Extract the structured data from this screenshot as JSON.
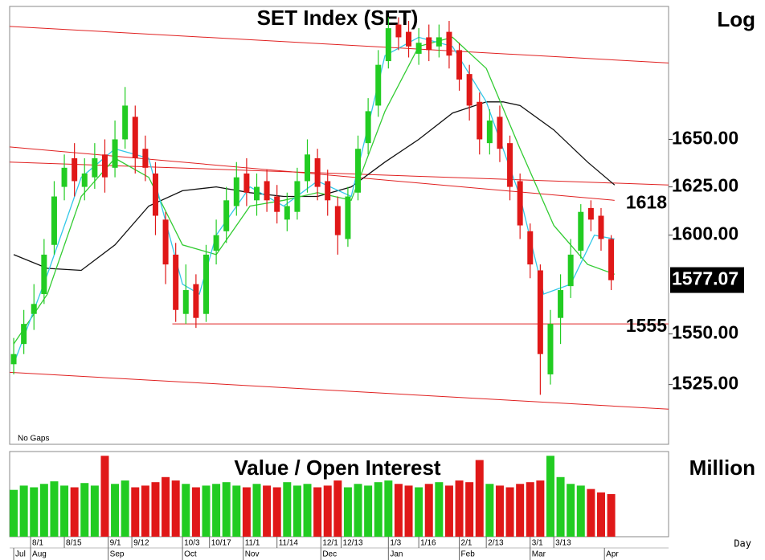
{
  "chart_data": {
    "type": "candlestick",
    "title": "SET Index (SET)",
    "scale_label": "Log",
    "log_scale": true,
    "footnote": "No Gaps",
    "period_label": "Day",
    "up_color": "#22cc22",
    "down_color": "#e01818",
    "ylim": [
      1496,
      1722
    ],
    "yticks": [
      {
        "value": 1525,
        "label": "1525.00"
      },
      {
        "value": 1550,
        "label": "1550.00"
      },
      {
        "value": 1600,
        "label": "1600.00"
      },
      {
        "value": 1625,
        "label": "1625.00"
      },
      {
        "value": 1650,
        "label": "1650.00"
      }
    ],
    "last_price": 1577.07,
    "levels": [
      1618,
      1555
    ],
    "xlim": [
      -1.2,
      194
    ],
    "xticks": [
      {
        "value": 5,
        "label": "8/1"
      },
      {
        "value": 15,
        "label": "8/15"
      },
      {
        "value": 28,
        "label": "9/1"
      },
      {
        "value": 35,
        "label": "9/12"
      },
      {
        "value": 50,
        "label": "10/3"
      },
      {
        "value": 58,
        "label": "10/17"
      },
      {
        "value": 68,
        "label": "11/1"
      },
      {
        "value": 78,
        "label": "11/14"
      },
      {
        "value": 91,
        "label": "12/1"
      },
      {
        "value": 97,
        "label": "12/13"
      },
      {
        "value": 111,
        "label": "1/3"
      },
      {
        "value": 120,
        "label": "1/16"
      },
      {
        "value": 132,
        "label": "2/1"
      },
      {
        "value": 140,
        "label": "2/13"
      },
      {
        "value": 153,
        "label": "3/1"
      },
      {
        "value": 160,
        "label": "3/13"
      }
    ],
    "month_ticks": [
      {
        "value": 0,
        "label": "Jul"
      },
      {
        "value": 5,
        "label": "Aug"
      },
      {
        "value": 28,
        "label": "Sep"
      },
      {
        "value": 50,
        "label": "Oct"
      },
      {
        "value": 68,
        "label": "Nov"
      },
      {
        "value": 91,
        "label": "Dec"
      },
      {
        "value": 111,
        "label": "Jan"
      },
      {
        "value": 132,
        "label": "Feb"
      },
      {
        "value": 153,
        "label": "Mar"
      },
      {
        "value": 175,
        "label": "Apr"
      }
    ],
    "x": [
      0,
      3,
      6,
      9,
      12,
      15,
      18,
      21,
      24,
      27,
      30,
      33,
      36,
      39,
      42,
      45,
      48,
      51,
      54,
      57,
      60,
      63,
      66,
      69,
      72,
      75,
      78,
      81,
      84,
      87,
      90,
      93,
      96,
      99,
      102,
      105,
      108,
      111,
      114,
      117,
      120,
      123,
      126,
      129,
      132,
      135,
      138,
      141,
      144,
      147,
      150,
      153,
      156,
      159,
      162,
      165,
      168,
      171,
      174,
      177
    ],
    "candles": {
      "open": [
        1535,
        1545,
        1560,
        1570,
        1595,
        1625,
        1640,
        1625,
        1630,
        1642,
        1635,
        1650,
        1662,
        1645,
        1632,
        1608,
        1590,
        1560,
        1575,
        1560,
        1592,
        1602,
        1615,
        1632,
        1618,
        1628,
        1620,
        1608,
        1612,
        1628,
        1640,
        1628,
        1615,
        1598,
        1622,
        1648,
        1668,
        1692,
        1712,
        1708,
        1696,
        1705,
        1700,
        1708,
        1698,
        1685,
        1670,
        1648,
        1662,
        1648,
        1628,
        1602,
        1582,
        1530,
        1558,
        1574,
        1592,
        1614,
        1610,
        1598
      ],
      "high": [
        1548,
        1562,
        1575,
        1598,
        1628,
        1642,
        1648,
        1640,
        1648,
        1650,
        1660,
        1678,
        1668,
        1652,
        1638,
        1612,
        1596,
        1585,
        1580,
        1595,
        1608,
        1625,
        1638,
        1640,
        1632,
        1634,
        1626,
        1622,
        1635,
        1650,
        1645,
        1634,
        1620,
        1625,
        1652,
        1672,
        1698,
        1716,
        1716,
        1714,
        1710,
        1712,
        1712,
        1714,
        1702,
        1690,
        1675,
        1666,
        1668,
        1652,
        1632,
        1606,
        1585,
        1562,
        1580,
        1598,
        1616,
        1618,
        1614,
        1600
      ],
      "low": [
        1530,
        1540,
        1552,
        1565,
        1590,
        1618,
        1620,
        1618,
        1624,
        1622,
        1630,
        1645,
        1632,
        1628,
        1600,
        1575,
        1556,
        1555,
        1553,
        1556,
        1585,
        1596,
        1610,
        1615,
        1610,
        1612,
        1606,
        1602,
        1608,
        1622,
        1618,
        1610,
        1590,
        1594,
        1618,
        1642,
        1662,
        1688,
        1698,
        1694,
        1690,
        1692,
        1694,
        1688,
        1676,
        1660,
        1642,
        1642,
        1638,
        1618,
        1598,
        1578,
        1520,
        1525,
        1545,
        1568,
        1588,
        1602,
        1592,
        1572
      ],
      "close": [
        1540,
        1555,
        1565,
        1590,
        1620,
        1635,
        1628,
        1632,
        1640,
        1630,
        1650,
        1668,
        1640,
        1635,
        1610,
        1585,
        1562,
        1572,
        1558,
        1590,
        1600,
        1618,
        1630,
        1622,
        1625,
        1618,
        1612,
        1615,
        1628,
        1642,
        1625,
        1618,
        1600,
        1620,
        1645,
        1665,
        1690,
        1710,
        1705,
        1700,
        1702,
        1698,
        1705,
        1695,
        1682,
        1668,
        1650,
        1660,
        1645,
        1625,
        1605,
        1585,
        1540,
        1555,
        1572,
        1590,
        1612,
        1608,
        1598,
        1577
      ]
    },
    "series": [
      {
        "color": "#111111",
        "x": [
          0,
          10,
          20,
          30,
          40,
          50,
          60,
          70,
          80,
          90,
          100,
          110,
          120,
          130,
          140,
          145,
          150,
          160,
          170,
          178
        ],
        "values": [
          1590,
          1583,
          1582,
          1595,
          1615,
          1623,
          1625,
          1622,
          1620,
          1620,
          1625,
          1638,
          1650,
          1664,
          1670,
          1670,
          1668,
          1655,
          1638,
          1626
        ]
      },
      {
        "color": "#33cc33",
        "x": [
          0,
          10,
          20,
          30,
          40,
          50,
          60,
          70,
          80,
          90,
          100,
          110,
          120,
          130,
          140,
          150,
          160,
          170,
          178
        ],
        "values": [
          1545,
          1570,
          1620,
          1640,
          1630,
          1595,
          1590,
          1615,
          1618,
          1622,
          1618,
          1665,
          1700,
          1705,
          1688,
          1645,
          1605,
          1585,
          1580
        ]
      },
      {
        "color": "#33c8e8",
        "x": [
          0,
          10,
          20,
          30,
          40,
          50,
          55,
          60,
          70,
          80,
          90,
          100,
          110,
          120,
          130,
          140,
          150,
          157,
          165,
          172,
          178
        ],
        "values": [
          1535,
          1580,
          1630,
          1645,
          1640,
          1575,
          1570,
          1600,
          1625,
          1615,
          1628,
          1620,
          1695,
          1705,
          1700,
          1670,
          1620,
          1570,
          1575,
          1600,
          1598
        ]
      }
    ],
    "trend_lines": [
      {
        "color": "#e02020",
        "x": [
          -1.2,
          194
        ],
        "y": [
          1711,
          1691
        ]
      },
      {
        "color": "#e02020",
        "x": [
          -1.2,
          178
        ],
        "y": [
          1646,
          1618
        ]
      },
      {
        "color": "#e02020",
        "x": [
          -1.2,
          194
        ],
        "y": [
          1638,
          1626
        ]
      },
      {
        "color": "#e02020",
        "x": [
          47,
          194
        ],
        "y": [
          1555,
          1555
        ]
      },
      {
        "color": "#e02020",
        "x": [
          -1.2,
          194
        ],
        "y": [
          1531,
          1513
        ]
      }
    ],
    "volume": {
      "title": "Value / Open Interest",
      "unit_label": "Million",
      "ylim": [
        0,
        100
      ],
      "values": [
        55,
        60,
        58,
        62,
        65,
        60,
        58,
        63,
        60,
        95,
        62,
        66,
        58,
        60,
        64,
        70,
        66,
        62,
        58,
        60,
        62,
        64,
        60,
        58,
        62,
        60,
        58,
        64,
        60,
        62,
        58,
        60,
        66,
        58,
        62,
        60,
        64,
        66,
        62,
        60,
        58,
        62,
        64,
        60,
        66,
        64,
        90,
        62,
        60,
        58,
        62,
        64,
        66,
        95,
        70,
        62,
        60,
        56,
        52,
        50
      ]
    }
  }
}
